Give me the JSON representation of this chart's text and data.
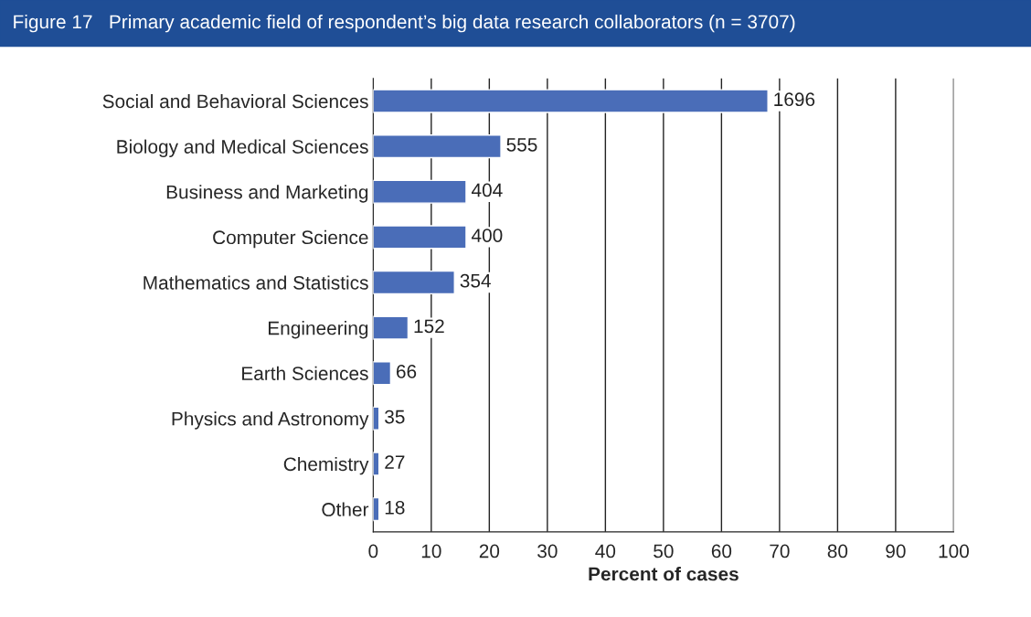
{
  "chart_data": {
    "type": "bar",
    "orientation": "horizontal",
    "title": "Figure 17   Primary academic field of respondent’s big data research collaborators (n = 3707)",
    "xlabel": "Percent of cases",
    "categories": [
      "Social and Behavioral Sciences",
      "Biology and Medical Sciences",
      "Business and Marketing",
      "Computer Science",
      "Mathematics and Statistics",
      "Engineering",
      "Earth Sciences",
      "Physics and Astronomy",
      "Chemistry",
      "Other"
    ],
    "values": [
      68,
      22,
      16,
      16,
      14,
      6,
      3,
      1,
      1,
      1
    ],
    "annotations": [
      {
        "text": "1696",
        "x": 68,
        "y": "Social and Behavioral Sciences"
      },
      {
        "text": "555",
        "x": 22,
        "y": "Biology and Medical Sciences"
      },
      {
        "text": "404",
        "x": 16,
        "y": "Business and Marketing"
      },
      {
        "text": "400",
        "x": 16,
        "y": "Computer Science"
      },
      {
        "text": "354",
        "x": 14,
        "y": "Mathematics and Statistics"
      },
      {
        "text": "152",
        "x": 6,
        "y": "Engineering"
      },
      {
        "text": "66",
        "x": 3,
        "y": "Earth Sciences"
      },
      {
        "text": "35",
        "x": 1,
        "y": "Physics and Astronomy"
      },
      {
        "text": "27",
        "x": 1,
        "y": "Chemistry"
      },
      {
        "text": "18",
        "x": 1,
        "y": "Other"
      }
    ],
    "color": "#4a6db8",
    "xlim": [
      0,
      100
    ],
    "xticks": [
      0,
      10,
      20,
      30,
      40,
      50,
      60,
      70,
      80,
      90,
      100
    ],
    "grid": "x",
    "legend": false
  }
}
